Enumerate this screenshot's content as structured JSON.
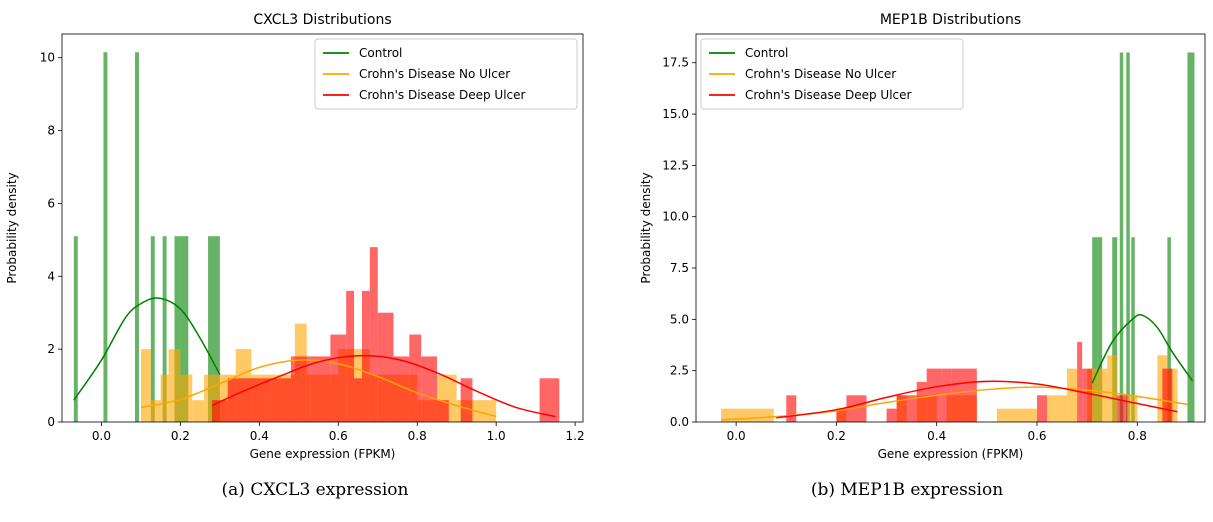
{
  "colors": {
    "control": "#008000",
    "no_ulcer": "#ffa500",
    "deep_ulcer": "#ff0000"
  },
  "chart_data": [
    {
      "type": "histogram",
      "title": "CXCL3 Distributions",
      "xlabel": "Gene expression (FPKM)",
      "ylabel": "Probability density",
      "xlim": [
        -0.1,
        1.22
      ],
      "ylim": [
        0,
        10.65
      ],
      "xticks": [
        0.0,
        0.2,
        0.4,
        0.6,
        0.8,
        1.0,
        1.2
      ],
      "yticks": [
        0,
        2,
        4,
        6,
        8,
        10
      ],
      "legend_position": "top-right",
      "caption": "(a) CXCL3 expression",
      "series": [
        {
          "name": "Control",
          "color": "#008000",
          "bins": [
            [
              -0.07,
              -0.06,
              5.1
            ],
            [
              0.005,
              0.015,
              10.15
            ],
            [
              0.085,
              0.095,
              10.15
            ],
            [
              0.125,
              0.135,
              5.1
            ],
            [
              0.155,
              0.165,
              5.1
            ],
            [
              0.185,
              0.2,
              5.1
            ],
            [
              0.2,
              0.22,
              5.1
            ],
            [
              0.27,
              0.285,
              5.1
            ],
            [
              0.285,
              0.3,
              5.1
            ]
          ],
          "kde": [
            [
              -0.07,
              0.6
            ],
            [
              0.0,
              1.7
            ],
            [
              0.06,
              2.85
            ],
            [
              0.1,
              3.25
            ],
            [
              0.145,
              3.4
            ],
            [
              0.2,
              3.1
            ],
            [
              0.25,
              2.3
            ],
            [
              0.3,
              1.3
            ]
          ]
        },
        {
          "name": "Crohn's Disease No Ulcer",
          "color": "#ffa500",
          "bins": [
            [
              0.1,
              0.125,
              2.0
            ],
            [
              0.125,
              0.15,
              0.6
            ],
            [
              0.15,
              0.17,
              1.3
            ],
            [
              0.17,
              0.2,
              2.0
            ],
            [
              0.2,
              0.23,
              1.3
            ],
            [
              0.23,
              0.26,
              0.6
            ],
            [
              0.26,
              0.3,
              1.3
            ],
            [
              0.3,
              0.34,
              1.3
            ],
            [
              0.34,
              0.38,
              2.0
            ],
            [
              0.38,
              0.44,
              1.3
            ],
            [
              0.44,
              0.49,
              1.3
            ],
            [
              0.49,
              0.52,
              2.7
            ],
            [
              0.52,
              0.6,
              1.3
            ],
            [
              0.6,
              0.68,
              2.0
            ],
            [
              0.68,
              0.72,
              1.3
            ],
            [
              0.72,
              0.8,
              1.3
            ],
            [
              0.8,
              0.85,
              0.6
            ],
            [
              0.85,
              0.9,
              1.3
            ],
            [
              0.9,
              0.94,
              0.6
            ],
            [
              0.94,
              1.0,
              0.6
            ]
          ],
          "kde": [
            [
              0.1,
              0.4
            ],
            [
              0.2,
              0.62
            ],
            [
              0.3,
              1.05
            ],
            [
              0.4,
              1.5
            ],
            [
              0.5,
              1.7
            ],
            [
              0.6,
              1.6
            ],
            [
              0.7,
              1.25
            ],
            [
              0.8,
              0.8
            ],
            [
              0.9,
              0.45
            ],
            [
              1.0,
              0.15
            ]
          ]
        },
        {
          "name": "Crohn's Disease Deep Ulcer",
          "color": "#ff0000",
          "bins": [
            [
              0.28,
              0.32,
              0.6
            ],
            [
              0.32,
              0.38,
              1.2
            ],
            [
              0.38,
              0.43,
              1.2
            ],
            [
              0.43,
              0.48,
              1.2
            ],
            [
              0.48,
              0.53,
              1.8
            ],
            [
              0.53,
              0.58,
              1.8
            ],
            [
              0.58,
              0.62,
              2.4
            ],
            [
              0.62,
              0.64,
              3.6
            ],
            [
              0.64,
              0.66,
              1.2
            ],
            [
              0.66,
              0.68,
              3.6
            ],
            [
              0.68,
              0.7,
              4.8
            ],
            [
              0.7,
              0.74,
              3.0
            ],
            [
              0.74,
              0.78,
              1.8
            ],
            [
              0.78,
              0.81,
              2.4
            ],
            [
              0.81,
              0.85,
              1.8
            ],
            [
              0.85,
              0.88,
              0.6
            ],
            [
              0.91,
              0.94,
              1.2
            ],
            [
              1.11,
              1.16,
              1.2
            ]
          ],
          "kde": [
            [
              0.28,
              0.45
            ],
            [
              0.35,
              0.8
            ],
            [
              0.45,
              1.25
            ],
            [
              0.55,
              1.65
            ],
            [
              0.65,
              1.82
            ],
            [
              0.75,
              1.72
            ],
            [
              0.85,
              1.35
            ],
            [
              0.95,
              0.85
            ],
            [
              1.05,
              0.4
            ],
            [
              1.15,
              0.15
            ]
          ]
        }
      ]
    },
    {
      "type": "histogram",
      "title": "MEP1B Distributions",
      "xlabel": "Gene expression (FPKM)",
      "ylabel": "Probability density",
      "xlim": [
        -0.08,
        0.935
      ],
      "ylim": [
        0,
        18.9
      ],
      "xticks": [
        0.0,
        0.2,
        0.4,
        0.6,
        0.8
      ],
      "yticks": [
        0.0,
        2.5,
        5.0,
        7.5,
        10.0,
        12.5,
        15.0,
        17.5
      ],
      "legend_position": "top-left",
      "caption": "(b) MEP1B expression",
      "series": [
        {
          "name": "Control",
          "color": "#008000",
          "bins": [
            [
              0.71,
              0.72,
              9.0
            ],
            [
              0.72,
              0.73,
              9.0
            ],
            [
              0.75,
              0.76,
              9.0
            ],
            [
              0.765,
              0.772,
              18.0
            ],
            [
              0.778,
              0.785,
              18.0
            ],
            [
              0.788,
              0.795,
              9.0
            ],
            [
              0.86,
              0.867,
              9.0
            ],
            [
              0.9,
              0.914,
              18.0
            ]
          ],
          "kde": [
            [
              0.71,
              1.9
            ],
            [
              0.75,
              3.9
            ],
            [
              0.79,
              5.0
            ],
            [
              0.81,
              5.2
            ],
            [
              0.84,
              4.6
            ],
            [
              0.87,
              3.4
            ],
            [
              0.91,
              2.0
            ]
          ]
        },
        {
          "name": "Crohn's Disease No Ulcer",
          "color": "#ffa500",
          "bins": [
            [
              -0.03,
              0.075,
              0.65
            ],
            [
              0.2,
              0.22,
              0.65
            ],
            [
              0.32,
              0.34,
              1.3
            ],
            [
              0.36,
              0.4,
              1.3
            ],
            [
              0.42,
              0.48,
              1.3
            ],
            [
              0.52,
              0.6,
              0.65
            ],
            [
              0.62,
              0.66,
              1.3
            ],
            [
              0.66,
              0.68,
              2.6
            ],
            [
              0.7,
              0.74,
              2.6
            ],
            [
              0.74,
              0.76,
              3.25
            ],
            [
              0.78,
              0.8,
              1.3
            ],
            [
              0.84,
              0.86,
              3.25
            ],
            [
              0.86,
              0.88,
              2.6
            ]
          ],
          "kde": [
            [
              -0.03,
              0.1
            ],
            [
              0.1,
              0.3
            ],
            [
              0.2,
              0.55
            ],
            [
              0.3,
              0.95
            ],
            [
              0.4,
              1.3
            ],
            [
              0.5,
              1.58
            ],
            [
              0.6,
              1.7
            ],
            [
              0.7,
              1.55
            ],
            [
              0.8,
              1.25
            ],
            [
              0.9,
              0.85
            ]
          ]
        },
        {
          "name": "Crohn's Disease Deep Ulcer",
          "color": "#ff0000",
          "bins": [
            [
              0.1,
              0.12,
              1.3
            ],
            [
              0.2,
              0.22,
              0.65
            ],
            [
              0.22,
              0.26,
              1.3
            ],
            [
              0.3,
              0.32,
              0.65
            ],
            [
              0.32,
              0.36,
              1.3
            ],
            [
              0.36,
              0.38,
              1.95
            ],
            [
              0.38,
              0.41,
              2.6
            ],
            [
              0.41,
              0.43,
              2.6
            ],
            [
              0.43,
              0.48,
              2.6
            ],
            [
              0.6,
              0.62,
              1.3
            ],
            [
              0.68,
              0.69,
              3.9
            ],
            [
              0.69,
              0.71,
              2.6
            ],
            [
              0.76,
              0.78,
              1.3
            ],
            [
              0.85,
              0.87,
              2.6
            ]
          ],
          "kde": [
            [
              0.08,
              0.2
            ],
            [
              0.2,
              0.6
            ],
            [
              0.3,
              1.2
            ],
            [
              0.4,
              1.72
            ],
            [
              0.5,
              1.98
            ],
            [
              0.6,
              1.85
            ],
            [
              0.7,
              1.4
            ],
            [
              0.8,
              0.9
            ],
            [
              0.88,
              0.5
            ]
          ]
        }
      ]
    }
  ]
}
